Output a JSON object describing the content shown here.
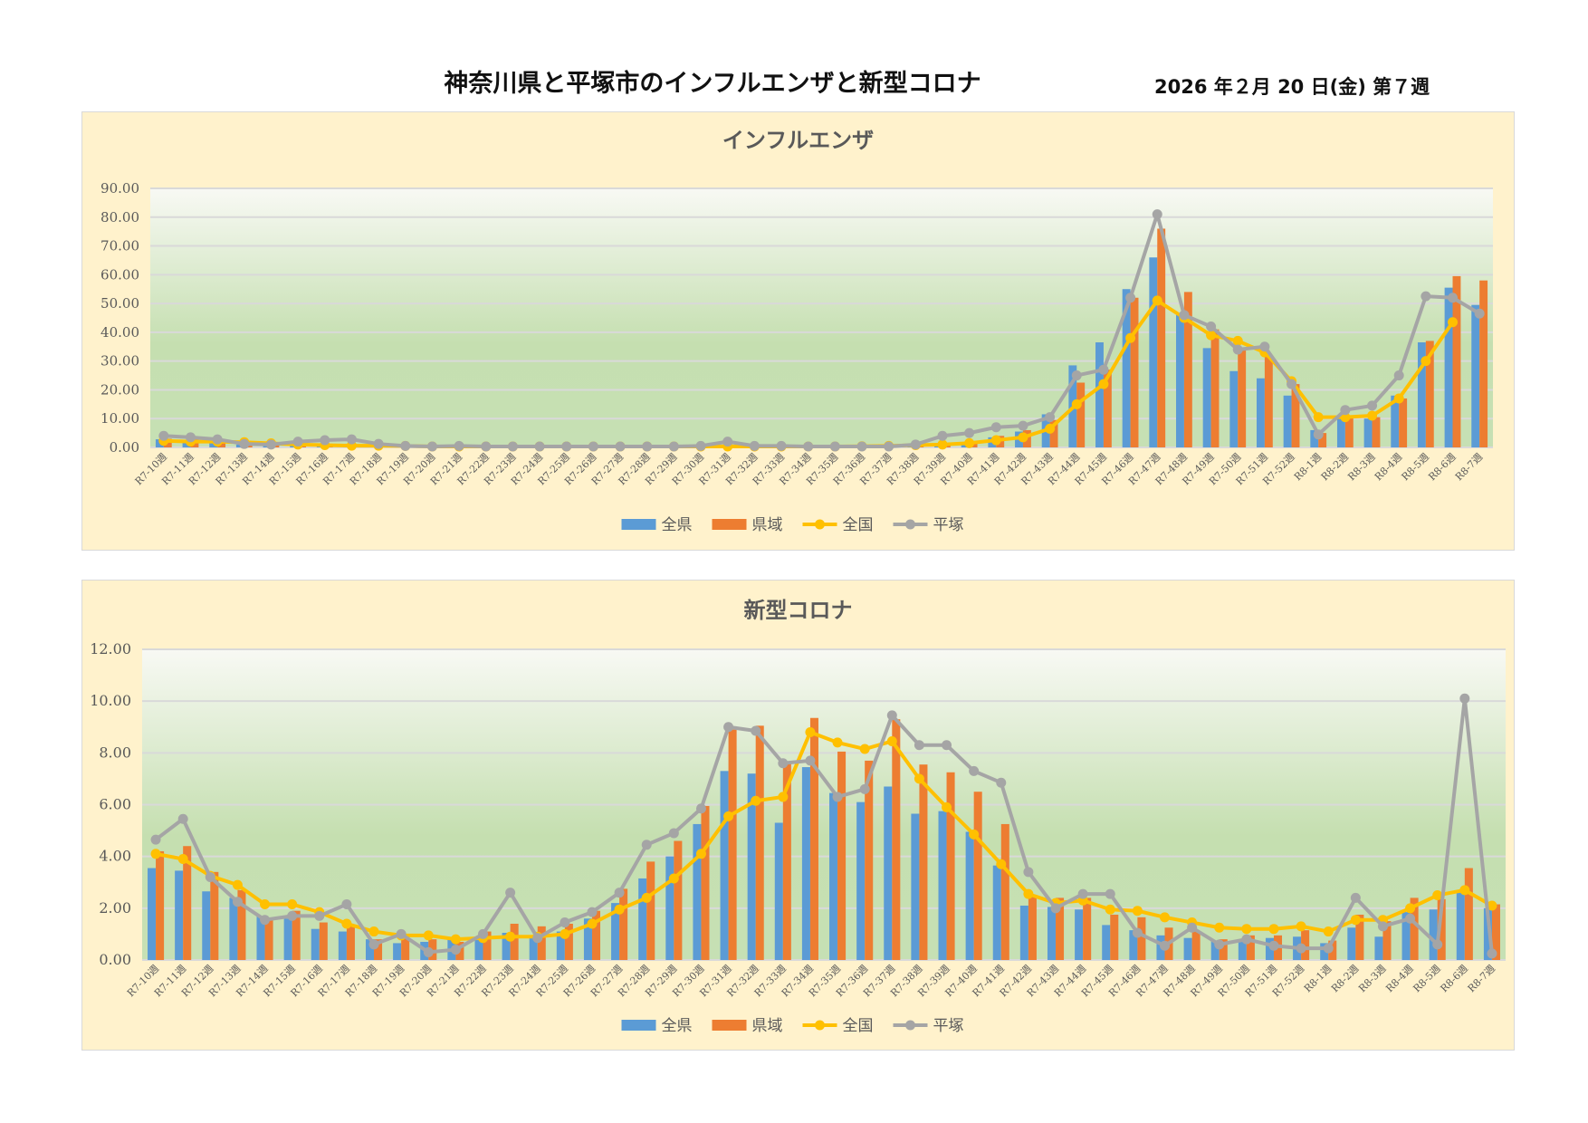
{
  "header": {
    "title": "神奈川県と平塚市のインフルエンザと新型コロナ",
    "date": "2026 年２月 20 日(金) 第７週"
  },
  "colors": {
    "全県": "#5b9bd5",
    "県域": "#ed7d31",
    "全国": "#ffc000",
    "平塚": "#a5a5a5",
    "panel": "#fff2cc"
  },
  "chart_data": [
    {
      "type": "bar+line",
      "title": "インフルエンザ",
      "ylim": [
        0,
        90
      ],
      "yticks": [
        "0.00",
        "10.00",
        "20.00",
        "30.00",
        "40.00",
        "50.00",
        "60.00",
        "70.00",
        "80.00",
        "90.00"
      ],
      "legend": "bottom",
      "categories": [
        "R7-10週",
        "R7-11週",
        "R7-12週",
        "R7-13週",
        "R7-14週",
        "R7-15週",
        "R7-16週",
        "R7-17週",
        "R7-18週",
        "R7-19週",
        "R7-20週",
        "R7-21週",
        "R7-22週",
        "R7-23週",
        "R7-24週",
        "R7-25週",
        "R7-26週",
        "R7-27週",
        "R7-28週",
        "R7-29週",
        "R7-30週",
        "R7-31週",
        "R7-32週",
        "R7-33週",
        "R7-34週",
        "R7-35週",
        "R7-36週",
        "R7-37週",
        "R7-38週",
        "R7-39週",
        "R7-40週",
        "R7-41週",
        "R7-42週",
        "R7-43週",
        "R7-44週",
        "R7-45週",
        "R7-46週",
        "R7-47週",
        "R7-48週",
        "R7-49週",
        "R7-50週",
        "R7-51週",
        "R7-52週",
        "R8-1週",
        "R8-2週",
        "R8-3週",
        "R8-4週",
        "R8-5週",
        "R8-6週",
        "R8-7週"
      ],
      "series": [
        {
          "name": "全県",
          "kind": "bar",
          "values": [
            2.8,
            2.5,
            1.5,
            1.0,
            0.8,
            0.8,
            0.8,
            0.5,
            0.5,
            0.3,
            0.2,
            0.2,
            0.2,
            0.2,
            0.2,
            0.2,
            0.2,
            0.2,
            0.2,
            0.2,
            0.2,
            0.3,
            0.2,
            0.2,
            0.2,
            0.2,
            0.2,
            0.3,
            0.5,
            0.8,
            1.5,
            3.5,
            5.5,
            11.5,
            28.5,
            36.5,
            55.0,
            66.0,
            46.0,
            34.5,
            26.5,
            24.0,
            18.0,
            6.0,
            10.0,
            10.0,
            18.0,
            36.5,
            55.5,
            49.5
          ]
        },
        {
          "name": "県域",
          "kind": "bar",
          "values": [
            3.0,
            2.8,
            2.3,
            1.5,
            1.0,
            1.0,
            0.9,
            0.8,
            0.6,
            0.5,
            0.3,
            0.3,
            0.3,
            0.3,
            0.3,
            0.3,
            0.3,
            0.3,
            0.3,
            0.3,
            0.3,
            0.4,
            0.3,
            0.3,
            0.3,
            0.3,
            0.3,
            0.4,
            0.6,
            1.0,
            2.0,
            4.0,
            6.0,
            9.5,
            22.5,
            27.0,
            52.0,
            76.0,
            54.0,
            41.0,
            34.0,
            32.0,
            22.0,
            5.0,
            10.5,
            10.5,
            17.0,
            37.0,
            59.5,
            58.0
          ]
        },
        {
          "name": "全国",
          "kind": "line",
          "values": [
            2.3,
            2.0,
            2.0,
            1.8,
            1.4,
            1.0,
            0.8,
            0.6,
            0.6,
            0.5,
            0.3,
            0.3,
            0.3,
            0.3,
            0.3,
            0.3,
            0.3,
            0.3,
            0.3,
            0.3,
            0.3,
            0.3,
            0.3,
            0.3,
            0.3,
            0.3,
            0.4,
            0.5,
            0.8,
            1.0,
            1.5,
            2.5,
            3.5,
            6.5,
            15.0,
            22.0,
            38.0,
            51.0,
            45.0,
            39.0,
            37.0,
            33.0,
            23.0,
            10.5,
            10.5,
            11.0,
            17.0,
            30.0,
            43.5,
            null
          ]
        },
        {
          "name": "平塚",
          "kind": "line",
          "values": [
            4.0,
            3.5,
            2.8,
            1.2,
            1.0,
            2.0,
            2.5,
            2.8,
            1.2,
            0.5,
            0.3,
            0.5,
            0.3,
            0.3,
            0.3,
            0.3,
            0.3,
            0.3,
            0.3,
            0.3,
            0.5,
            2.0,
            0.5,
            0.5,
            0.3,
            0.3,
            0.3,
            0.3,
            1.0,
            4.0,
            5.0,
            7.0,
            7.5,
            10.5,
            25.0,
            27.0,
            52.0,
            81.0,
            46.0,
            42.0,
            34.0,
            35.0,
            22.0,
            4.5,
            13.0,
            14.5,
            25.0,
            52.5,
            52.0,
            46.5
          ]
        }
      ]
    },
    {
      "type": "bar+line",
      "title": "新型コロナ",
      "ylim": [
        0,
        12
      ],
      "yticks": [
        "0.00",
        "2.00",
        "4.00",
        "6.00",
        "8.00",
        "10.00",
        "12.00"
      ],
      "legend": "bottom",
      "categories": [
        "R7-10週",
        "R7-11週",
        "R7-12週",
        "R7-13週",
        "R7-14週",
        "R7-15週",
        "R7-16週",
        "R7-17週",
        "R7-18週",
        "R7-19週",
        "R7-20週",
        "R7-21週",
        "R7-22週",
        "R7-23週",
        "R7-24週",
        "R7-25週",
        "R7-26週",
        "R7-27週",
        "R7-28週",
        "R7-29週",
        "R7-30週",
        "R7-31週",
        "R7-32週",
        "R7-33週",
        "R7-34週",
        "R7-35週",
        "R7-36週",
        "R7-37週",
        "R7-38週",
        "R7-39週",
        "R7-40週",
        "R7-41週",
        "R7-42週",
        "R7-43週",
        "R7-44週",
        "R7-45週",
        "R7-46週",
        "R7-47週",
        "R7-48週",
        "R7-49週",
        "R7-50週",
        "R7-51週",
        "R7-52週",
        "R8-1週",
        "R8-2週",
        "R8-3週",
        "R8-4週",
        "R8-5週",
        "R8-6週",
        "R8-7週"
      ],
      "series": [
        {
          "name": "全県",
          "kind": "bar",
          "values": [
            3.55,
            3.45,
            2.65,
            2.4,
            1.7,
            1.6,
            1.2,
            1.1,
            0.8,
            0.65,
            0.7,
            0.8,
            0.9,
            1.05,
            0.9,
            1.1,
            1.6,
            2.2,
            3.15,
            4.0,
            5.25,
            7.3,
            7.2,
            5.3,
            7.45,
            6.45,
            6.1,
            6.7,
            5.65,
            5.75,
            4.95,
            3.65,
            2.1,
            2.05,
            1.95,
            1.35,
            1.15,
            0.95,
            0.85,
            0.75,
            0.75,
            0.85,
            0.9,
            0.65,
            1.25,
            0.9,
            1.85,
            1.95,
            2.6,
            2.0
          ]
        },
        {
          "name": "県域",
          "kind": "bar",
          "values": [
            4.2,
            4.4,
            3.4,
            2.7,
            1.6,
            1.9,
            1.45,
            1.3,
            0.8,
            0.9,
            0.8,
            0.7,
            1.1,
            1.4,
            1.3,
            1.4,
            1.9,
            2.75,
            3.8,
            4.6,
            5.95,
            8.9,
            9.05,
            7.6,
            9.35,
            8.05,
            7.7,
            9.3,
            7.55,
            7.25,
            6.5,
            5.25,
            2.45,
            2.4,
            2.4,
            1.75,
            1.65,
            1.25,
            1.1,
            0.8,
            0.95,
            0.95,
            1.15,
            0.75,
            1.75,
            1.5,
            2.4,
            2.35,
            3.55,
            2.15
          ]
        },
        {
          "name": "全国",
          "kind": "line",
          "values": [
            4.1,
            3.9,
            3.25,
            2.9,
            2.15,
            2.15,
            1.85,
            1.4,
            1.1,
            0.95,
            0.95,
            0.8,
            0.85,
            0.9,
            0.9,
            1.0,
            1.4,
            1.95,
            2.4,
            3.15,
            4.1,
            5.55,
            6.15,
            6.3,
            8.8,
            8.4,
            8.15,
            8.45,
            7.0,
            5.9,
            4.85,
            3.7,
            2.55,
            2.2,
            2.3,
            1.95,
            1.9,
            1.65,
            1.45,
            1.25,
            1.2,
            1.2,
            1.3,
            1.1,
            1.55,
            1.55,
            2.0,
            2.5,
            2.7,
            2.1
          ]
        },
        {
          "name": "平塚",
          "kind": "line",
          "values": [
            4.65,
            5.45,
            3.2,
            2.25,
            1.55,
            1.7,
            1.7,
            2.15,
            0.6,
            1.0,
            0.3,
            0.4,
            1.0,
            2.6,
            0.85,
            1.45,
            1.85,
            2.6,
            4.45,
            4.9,
            5.85,
            9.0,
            8.85,
            7.6,
            7.7,
            6.3,
            6.6,
            9.45,
            8.3,
            8.3,
            7.3,
            6.85,
            3.4,
            2.0,
            2.55,
            2.55,
            1.05,
            0.55,
            1.25,
            0.6,
            0.8,
            0.55,
            0.45,
            0.45,
            2.4,
            1.3,
            1.6,
            0.6,
            10.1,
            0.25
          ]
        }
      ]
    }
  ]
}
